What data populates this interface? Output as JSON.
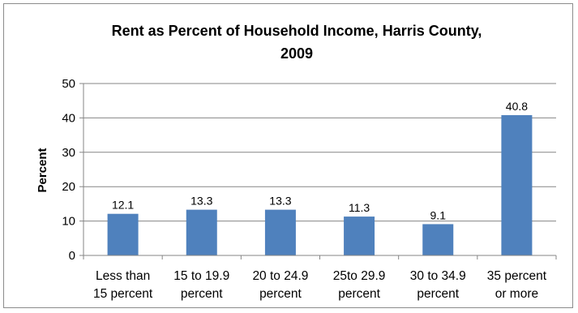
{
  "chart_data": {
    "type": "bar",
    "title_lines": [
      "Rent as Percent of Household Income, Harris County,",
      "2009"
    ],
    "ylabel": "Percent",
    "xlabel": "",
    "ylim": [
      0,
      50
    ],
    "yticks": [
      0,
      10,
      20,
      30,
      40,
      50
    ],
    "grid": true,
    "categories": [
      [
        "Less than",
        "15 percent"
      ],
      [
        "15 to 19.9",
        "percent"
      ],
      [
        "20 to 24.9",
        "percent"
      ],
      [
        "25to 29.9",
        "percent"
      ],
      [
        "30 to 34.9",
        "percent"
      ],
      [
        "35 percent",
        "or more"
      ]
    ],
    "values": [
      12.1,
      13.3,
      13.3,
      11.3,
      9.1,
      40.8
    ],
    "data_labels": [
      "12.1",
      "13.3",
      "13.3",
      "11.3",
      "9.1",
      "40.8"
    ],
    "bar_color": "#4f81bd"
  }
}
